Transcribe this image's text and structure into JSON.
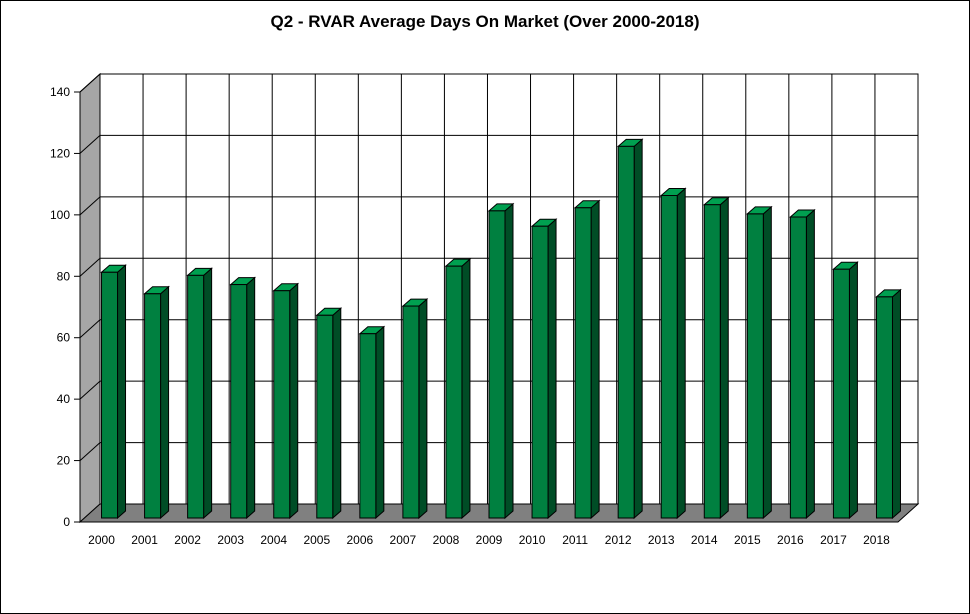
{
  "chart_data": {
    "type": "bar",
    "title": "Q2 - RVAR Average Days On Market (Over 2000-2018)",
    "xlabel": "",
    "ylabel": "",
    "categories": [
      "2000",
      "2001",
      "2002",
      "2003",
      "2004",
      "2005",
      "2006",
      "2007",
      "2008",
      "2009",
      "2010",
      "2011",
      "2012",
      "2013",
      "2014",
      "2015",
      "2016",
      "2017",
      "2018"
    ],
    "values": [
      80,
      73,
      79,
      76,
      74,
      66,
      60,
      69,
      82,
      100,
      95,
      101,
      121,
      105,
      102,
      99,
      98,
      81,
      72
    ],
    "ylim": [
      0,
      140
    ],
    "yticks": [
      "0",
      "20",
      "40",
      "60",
      "80",
      "100",
      "120",
      "140"
    ],
    "grid": true,
    "legend": "none",
    "style": "3d",
    "colors": {
      "bar_front": "#008040",
      "bar_side": "#004d26",
      "bar_top": "#00a050",
      "wall_side": "#a6a6a6",
      "floor": "#808080"
    }
  }
}
